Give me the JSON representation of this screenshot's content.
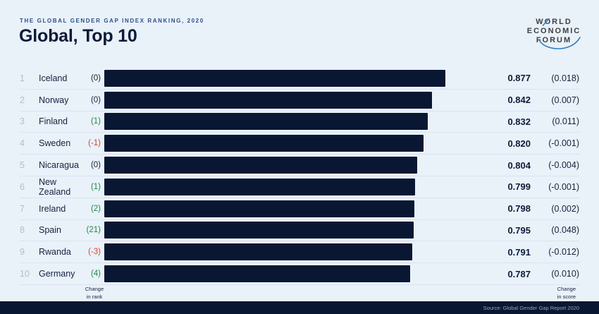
{
  "header": {
    "eyebrow": "THE GLOBAL GENDER GAP INDEX RANKING, 2020",
    "title": "Global, Top 10"
  },
  "logo": {
    "line1": "WORLD",
    "line2": "ECONOMIC",
    "line3": "FORUM"
  },
  "axis_labels": {
    "change_in_rank": [
      "Change",
      "in rank"
    ],
    "change_in_score": [
      "Change",
      "in score"
    ]
  },
  "footer": {
    "source": "Source: Global Gender Gap Report 2020"
  },
  "colors": {
    "background": "#e9f1f9",
    "bar": "#0a1733",
    "title": "#0d1b3a",
    "eyebrow_blue": "#2e5188",
    "positive_green": "#1d8a4a",
    "negative_red": "#e03c31",
    "separator": "#dbe5f0",
    "rank_gray": "#b3bdca",
    "footer_bg": "#0a1733",
    "footer_text": "#98a4ba",
    "logo_text": "#3f3f3f",
    "logo_arc_blue": "#2b7bbd"
  },
  "chart_data": {
    "type": "bar",
    "title": "Global, Top 10",
    "subtitle": "THE GLOBAL GENDER GAP INDEX RANKING, 2020",
    "orientation": "horizontal",
    "xlim": [
      0,
      1
    ],
    "grid": false,
    "legend": false,
    "rows": [
      {
        "rank": 1,
        "country": "Iceland",
        "rank_change": "(0)",
        "score": 0.877,
        "score_label": "0.877",
        "score_change": "(0.018)"
      },
      {
        "rank": 2,
        "country": "Norway",
        "rank_change": "(0)",
        "score": 0.842,
        "score_label": "0.842",
        "score_change": "(0.007)"
      },
      {
        "rank": 3,
        "country": "Finland",
        "rank_change": "(1)",
        "score": 0.832,
        "score_label": "0.832",
        "score_change": "(0.011)"
      },
      {
        "rank": 4,
        "country": "Sweden",
        "rank_change": "(-1)",
        "score": 0.82,
        "score_label": "0.820",
        "score_change": "(-0.001)"
      },
      {
        "rank": 5,
        "country": "Nicaragua",
        "rank_change": "(0)",
        "score": 0.804,
        "score_label": "0.804",
        "score_change": "(-0.004)"
      },
      {
        "rank": 6,
        "country": "New Zealand",
        "rank_change": "(1)",
        "score": 0.799,
        "score_label": "0.799",
        "score_change": "(-0.001)"
      },
      {
        "rank": 7,
        "country": "Ireland",
        "rank_change": "(2)",
        "score": 0.798,
        "score_label": "0.798",
        "score_change": "(0.002)"
      },
      {
        "rank": 8,
        "country": "Spain",
        "rank_change": "(21)",
        "score": 0.795,
        "score_label": "0.795",
        "score_change": "(0.048)"
      },
      {
        "rank": 9,
        "country": "Rwanda",
        "rank_change": "(-3)",
        "score": 0.791,
        "score_label": "0.791",
        "score_change": "(-0.012)"
      },
      {
        "rank": 10,
        "country": "Germany",
        "rank_change": "(4)",
        "score": 0.787,
        "score_label": "0.787",
        "score_change": "(0.010)"
      }
    ]
  }
}
